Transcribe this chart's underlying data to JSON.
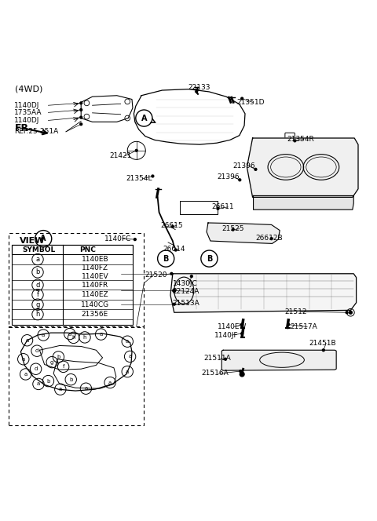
{
  "bg_color": "#ffffff",
  "fig_width": 4.8,
  "fig_height": 6.64,
  "dpi": 100,
  "header_text": "(4WD)",
  "view_table": {
    "rows": [
      [
        "a",
        "1140EB"
      ],
      [
        "b",
        "1140FZ\n1140EV"
      ],
      [
        "d",
        "1140FR"
      ],
      [
        "f",
        "1140EZ"
      ],
      [
        "g",
        "1140CG"
      ],
      [
        "h",
        "21356E"
      ]
    ]
  }
}
